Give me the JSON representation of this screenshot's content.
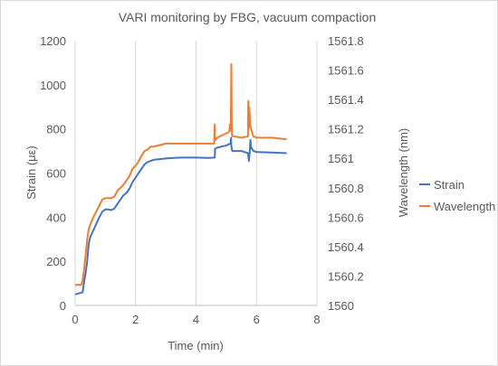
{
  "chart_data": {
    "type": "line",
    "title": "VARI monitoring by FBG, vacuum compaction",
    "xlabel": "Time (min)",
    "ylabel": "Strain (με)",
    "y2label": "Wavelength (nm)",
    "xlim": [
      0,
      8
    ],
    "ylim": [
      0,
      1200
    ],
    "y2lim": [
      1560,
      1561.8
    ],
    "xticks": [
      "0",
      "2",
      "4",
      "6",
      "8"
    ],
    "yticks": [
      "0",
      "200",
      "400",
      "600",
      "800",
      "1000",
      "1200"
    ],
    "y2ticks": [
      "1560",
      "1560.2",
      "1560.4",
      "1560.6",
      "1560.8",
      "1561",
      "1561.2",
      "1561.4",
      "1561.6",
      "1561.8"
    ],
    "grid": "vertical",
    "legend_position": "right",
    "series": [
      {
        "name": "Strain",
        "axis": "left",
        "color": "#4472C4",
        "x": [
          0,
          0.25,
          0.3,
          0.35,
          0.4,
          0.45,
          0.5,
          0.6,
          0.7,
          0.8,
          0.9,
          1.0,
          1.1,
          1.2,
          1.3,
          1.4,
          1.5,
          1.6,
          1.7,
          1.8,
          1.9,
          2.0,
          2.1,
          2.2,
          2.3,
          2.4,
          2.5,
          2.6,
          2.8,
          3.0,
          3.2,
          3.5,
          4.0,
          4.4,
          4.62,
          4.63,
          4.7,
          5.0,
          5.15,
          5.16,
          5.17,
          5.2,
          5.5,
          5.72,
          5.75,
          5.78,
          5.8,
          5.82,
          5.85,
          5.9,
          6.0,
          6.5,
          7.0
        ],
        "values": [
          50,
          60,
          110,
          150,
          200,
          280,
          310,
          340,
          370,
          400,
          425,
          435,
          435,
          432,
          440,
          460,
          480,
          500,
          510,
          530,
          560,
          580,
          600,
          620,
          640,
          650,
          655,
          660,
          663,
          666,
          668,
          670,
          670,
          669,
          670,
          710,
          715,
          725,
          735,
          760,
          720,
          700,
          700,
          690,
          655,
          700,
          750,
          720,
          710,
          700,
          695,
          693,
          690
        ]
      },
      {
        "name": "Wavelength",
        "axis": "right",
        "color": "#ED7D31",
        "x": [
          0,
          0.2,
          0.25,
          0.3,
          0.35,
          0.4,
          0.45,
          0.5,
          0.6,
          0.7,
          0.8,
          0.9,
          1.0,
          1.1,
          1.2,
          1.3,
          1.4,
          1.5,
          1.6,
          1.7,
          1.8,
          1.9,
          2.0,
          2.1,
          2.2,
          2.3,
          2.4,
          2.5,
          2.6,
          2.8,
          3.0,
          3.5,
          4.0,
          4.5,
          4.6,
          4.62,
          4.63,
          4.65,
          4.7,
          5.0,
          5.1,
          5.12,
          5.13,
          5.15,
          5.17,
          5.18,
          5.19,
          5.21,
          5.25,
          5.5,
          5.72,
          5.73,
          5.74,
          5.76,
          5.8,
          5.85,
          5.9,
          6.0,
          6.5,
          7.0
        ],
        "values": [
          1560.14,
          1560.14,
          1560.17,
          1560.25,
          1560.35,
          1560.45,
          1560.52,
          1560.55,
          1560.6,
          1560.64,
          1560.68,
          1560.72,
          1560.73,
          1560.73,
          1560.73,
          1560.74,
          1560.78,
          1560.8,
          1560.82,
          1560.85,
          1560.88,
          1560.93,
          1560.95,
          1560.98,
          1561.02,
          1561.05,
          1561.06,
          1561.08,
          1561.08,
          1561.09,
          1561.1,
          1561.1,
          1561.1,
          1561.1,
          1561.1,
          1561.23,
          1561.12,
          1561.13,
          1561.14,
          1561.17,
          1561.18,
          1561.23,
          1561.2,
          1561.19,
          1561.64,
          1561.25,
          1561.16,
          1561.15,
          1561.15,
          1561.14,
          1561.15,
          1561.39,
          1561.2,
          1561.35,
          1561.22,
          1561.18,
          1561.15,
          1561.14,
          1561.14,
          1561.13
        ]
      }
    ]
  }
}
